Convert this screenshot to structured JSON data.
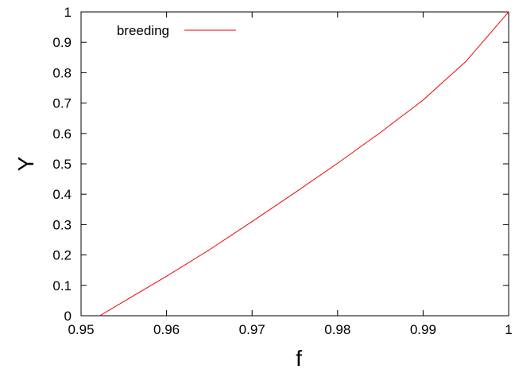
{
  "chart_data": {
    "type": "line",
    "title": "",
    "xlabel": "f",
    "ylabel": "Y",
    "xlim": [
      0.95,
      1.0
    ],
    "ylim": [
      0,
      1
    ],
    "xticks": [
      0.95,
      0.96,
      0.97,
      0.98,
      0.99,
      1.0
    ],
    "xtick_labels": [
      "0.95",
      "0.96",
      "0.97",
      "0.98",
      "0.99",
      "1"
    ],
    "yticks": [
      0,
      0.1,
      0.2,
      0.3,
      0.4,
      0.5,
      0.6,
      0.7,
      0.8,
      0.9,
      1.0
    ],
    "ytick_labels": [
      "0",
      "0.1",
      "0.2",
      "0.3",
      "0.4",
      "0.5",
      "0.6",
      "0.7",
      "0.8",
      "0.9",
      "1"
    ],
    "grid": false,
    "legend_position": "top-left",
    "series": [
      {
        "name": "breeding",
        "color": "#ee0000",
        "x": [
          0.9522,
          0.955,
          0.96,
          0.965,
          0.97,
          0.975,
          0.98,
          0.985,
          0.99,
          0.995,
          1.0
        ],
        "y": [
          0.0,
          0.047,
          0.13,
          0.217,
          0.31,
          0.405,
          0.502,
          0.603,
          0.71,
          0.837,
          1.0
        ]
      }
    ]
  }
}
